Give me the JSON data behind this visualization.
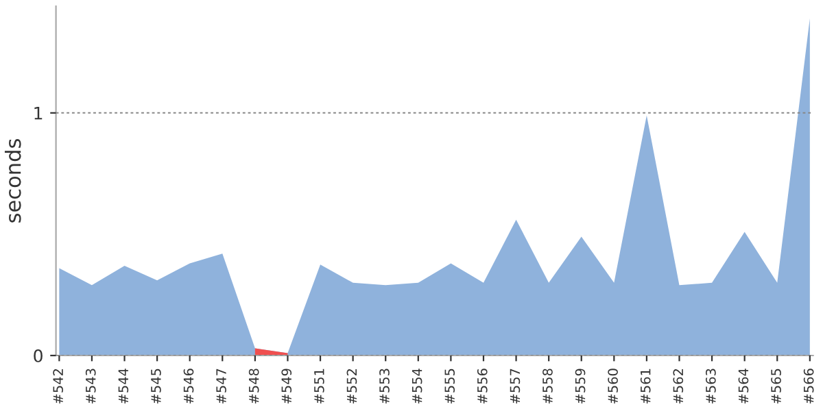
{
  "chart_data": {
    "type": "area",
    "ylabel": "seconds",
    "categories": [
      "#542",
      "#543",
      "#544",
      "#545",
      "#546",
      "#547",
      "#548",
      "#549",
      "#551",
      "#552",
      "#553",
      "#554",
      "#555",
      "#556",
      "#557",
      "#558",
      "#559",
      "#560",
      "#561",
      "#562",
      "#563",
      "#564",
      "#565",
      "#566"
    ],
    "series": [
      {
        "color": "#8fb2dc",
        "values": [
          0.36,
          0.29,
          0.37,
          0.31,
          0.38,
          0.42,
          0.03,
          0.01,
          0.375,
          0.3,
          0.29,
          0.3,
          0.38,
          0.3,
          0.56,
          0.3,
          0.49,
          0.3,
          0.99,
          0.29,
          0.3,
          0.51,
          0.3,
          1.39
        ]
      },
      {
        "color": "#f05050",
        "values": [
          null,
          null,
          null,
          null,
          null,
          null,
          0.03,
          0.01,
          null,
          null,
          null,
          null,
          null,
          null,
          null,
          null,
          null,
          null,
          null,
          null,
          null,
          null,
          null,
          null
        ]
      }
    ],
    "ylim": [
      0,
      1.44
    ],
    "yticks": [
      0,
      1
    ],
    "grid": "y"
  }
}
